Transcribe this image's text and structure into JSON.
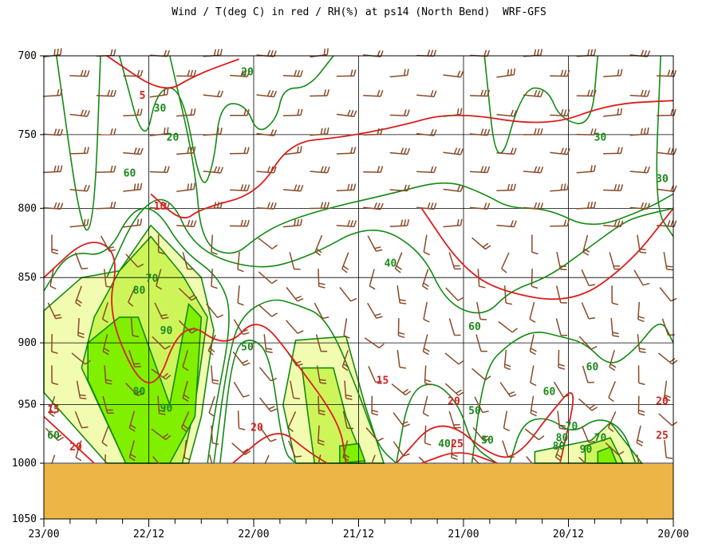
{
  "chart_data": {
    "type": "heatmap",
    "title": "Wind / T(deg C) in red / RH(%) at ps14 (North Bend)  WRF-GFS",
    "xlabel": "",
    "ylabel": "",
    "x_ticks": [
      "23/00",
      "22/12",
      "22/00",
      "21/12",
      "21/00",
      "20/12",
      "20/00"
    ],
    "y_ticks": [
      700,
      750,
      800,
      850,
      900,
      950,
      1000,
      1050
    ],
    "ylim": [
      700,
      1050
    ],
    "y_scale": "log-pressure",
    "grid": true,
    "colors": {
      "temperature": "#dd1c1c",
      "rh_contour": "#128a12",
      "wind_barb": "#8a4a28",
      "ground": "#ecb545",
      "rh_70": "#f2fcb0",
      "rh_80": "#cdf55a",
      "rh_90": "#80f000"
    },
    "rh_contour_labels": [
      {
        "label": "20",
        "x": "22/00",
        "p": 712
      },
      {
        "label": "30",
        "x": "22/12",
        "p": 735
      },
      {
        "label": "20",
        "x": "22/12",
        "p": 754
      },
      {
        "label": "60",
        "x": "22/12",
        "p": 778
      },
      {
        "label": "40",
        "x": "21/12",
        "p": 842
      },
      {
        "label": "70",
        "x": "22/12",
        "p": 853
      },
      {
        "label": "80",
        "x": "22/12",
        "p": 862
      },
      {
        "label": "90",
        "x": "22/12",
        "p": 893
      },
      {
        "label": "50",
        "x": "22/00",
        "p": 906
      },
      {
        "label": "60",
        "x": "21/00",
        "p": 890
      },
      {
        "label": "60",
        "x": "20/12",
        "p": 922
      },
      {
        "label": "60",
        "x": "20/12",
        "p": 942
      },
      {
        "label": "30",
        "x": "20/12",
        "p": 754
      },
      {
        "label": "30",
        "x": "20/00",
        "p": 782
      },
      {
        "label": "80",
        "x": "22/12",
        "p": 942
      },
      {
        "label": "90",
        "x": "22/12",
        "p": 956
      },
      {
        "label": "60",
        "x": "23/00",
        "p": 979
      },
      {
        "label": "50",
        "x": "21/00",
        "p": 958
      },
      {
        "label": "50",
        "x": "21/00",
        "p": 983
      },
      {
        "label": "40",
        "x": "21/00",
        "p": 986
      },
      {
        "label": "70",
        "x": "20/12",
        "p": 981
      },
      {
        "label": "70",
        "x": "20/12",
        "p": 971
      },
      {
        "label": "80",
        "x": "20/12",
        "p": 988
      },
      {
        "label": "90",
        "x": "20/12",
        "p": 991
      },
      {
        "label": "80",
        "x": "20/12",
        "p": 981
      }
    ],
    "temperature_contour_labels": [
      {
        "label": "5",
        "x": "22/12",
        "p": 727
      },
      {
        "label": "10",
        "x": "22/12",
        "p": 801
      },
      {
        "label": "15",
        "x": "21/12",
        "p": 933
      },
      {
        "label": "15",
        "x": "23/00",
        "p": 957
      },
      {
        "label": "20",
        "x": "23/00",
        "p": 989
      },
      {
        "label": "20",
        "x": "22/00",
        "p": 972
      },
      {
        "label": "20",
        "x": "21/00",
        "p": 950
      },
      {
        "label": "20",
        "x": "20/00",
        "p": 950
      },
      {
        "label": "25",
        "x": "21/00",
        "p": 986
      },
      {
        "label": "25",
        "x": "20/00",
        "p": 979
      }
    ],
    "temperature_lines": [
      {
        "level": 5,
        "points": [
          [
            0.1,
            700
          ],
          [
            0.19,
            724
          ],
          [
            0.24,
            712
          ],
          [
            0.31,
            702
          ]
        ]
      },
      {
        "level": 10,
        "points": [
          [
            0.17,
            790
          ],
          [
            0.22,
            810
          ],
          [
            0.25,
            800
          ],
          [
            0.34,
            790
          ],
          [
            0.39,
            755
          ],
          [
            0.47,
            752
          ],
          [
            0.56,
            745
          ],
          [
            0.65,
            735
          ],
          [
            0.8,
            745
          ],
          [
            0.9,
            730
          ],
          [
            1.0,
            728
          ]
        ]
      },
      {
        "level": 15,
        "points": [
          [
            0.0,
            850
          ],
          [
            0.07,
            820
          ],
          [
            0.12,
            832
          ],
          [
            0.1,
            880
          ],
          [
            0.17,
            950
          ],
          [
            0.22,
            880
          ],
          [
            0.29,
            905
          ],
          [
            0.34,
            878
          ],
          [
            0.4,
            915
          ],
          [
            0.47,
            965
          ],
          [
            0.48,
            1000
          ]
        ]
      },
      {
        "level": 20,
        "points": [
          [
            0.0,
            960
          ],
          [
            0.08,
            1000
          ]
        ]
      },
      {
        "level": 20,
        "points": [
          [
            0.3,
            1000
          ],
          [
            0.37,
            968
          ],
          [
            0.42,
            990
          ],
          [
            0.45,
            1000
          ]
        ]
      },
      {
        "level": 20,
        "points": [
          [
            0.56,
            1000
          ],
          [
            0.63,
            958
          ],
          [
            0.72,
            998
          ],
          [
            0.76,
            990
          ],
          [
            0.8,
            960
          ],
          [
            0.85,
            930
          ],
          [
            0.82,
            1000
          ]
        ]
      },
      {
        "level": 25,
        "points": [
          [
            0.6,
            1000
          ],
          [
            0.66,
            988
          ],
          [
            0.72,
            1000
          ]
        ]
      },
      {
        "level": 10,
        "points": [
          [
            0.6,
            800
          ],
          [
            0.66,
            840
          ],
          [
            0.72,
            860
          ],
          [
            0.84,
            870
          ],
          [
            0.93,
            840
          ],
          [
            1.0,
            800
          ]
        ]
      }
    ],
    "moist_regions": [
      {
        "rh": 70,
        "points": [
          [
            0.0,
            875
          ],
          [
            0.06,
            850
          ],
          [
            0.12,
            845
          ],
          [
            0.17,
            812
          ],
          [
            0.25,
            850
          ],
          [
            0.27,
            890
          ],
          [
            0.25,
            960
          ],
          [
            0.23,
            1000
          ],
          [
            0.1,
            1000
          ],
          [
            0.0,
            940
          ]
        ]
      },
      {
        "rh": 80,
        "points": [
          [
            0.08,
            880
          ],
          [
            0.12,
            845
          ],
          [
            0.17,
            820
          ],
          [
            0.22,
            848
          ],
          [
            0.26,
            880
          ],
          [
            0.24,
            950
          ],
          [
            0.22,
            1000
          ],
          [
            0.13,
            1000
          ],
          [
            0.06,
            920
          ]
        ]
      },
      {
        "rh": 90,
        "points": [
          [
            0.07,
            900
          ],
          [
            0.12,
            880
          ],
          [
            0.15,
            880
          ],
          [
            0.2,
            950
          ],
          [
            0.23,
            870
          ],
          [
            0.25,
            880
          ],
          [
            0.24,
            960
          ],
          [
            0.2,
            1000
          ],
          [
            0.13,
            1000
          ],
          [
            0.07,
            930
          ]
        ]
      },
      {
        "rh": 70,
        "points": [
          [
            0.4,
            898
          ],
          [
            0.48,
            895
          ],
          [
            0.51,
            950
          ],
          [
            0.54,
            1000
          ],
          [
            0.4,
            1000
          ],
          [
            0.38,
            950
          ]
        ]
      },
      {
        "rh": 80,
        "points": [
          [
            0.41,
            920
          ],
          [
            0.46,
            920
          ],
          [
            0.48,
            960
          ],
          [
            0.51,
            1000
          ],
          [
            0.43,
            1000
          ],
          [
            0.42,
            960
          ]
        ]
      },
      {
        "rh": 90,
        "points": [
          [
            0.47,
            985
          ],
          [
            0.5,
            983
          ],
          [
            0.51,
            998
          ],
          [
            0.47,
            1000
          ]
        ]
      },
      {
        "rh": 70,
        "points": [
          [
            0.78,
            990
          ],
          [
            0.87,
            980
          ],
          [
            0.9,
            965
          ],
          [
            0.95,
            1000
          ],
          [
            0.78,
            1000
          ]
        ]
      },
      {
        "rh": 80,
        "points": [
          [
            0.86,
            985
          ],
          [
            0.9,
            978
          ],
          [
            0.92,
            1000
          ],
          [
            0.86,
            1000
          ]
        ]
      },
      {
        "rh": 90,
        "points": [
          [
            0.88,
            990
          ],
          [
            0.9,
            986
          ],
          [
            0.91,
            1000
          ],
          [
            0.88,
            1000
          ]
        ]
      }
    ],
    "rh_lines": [
      {
        "level": 20,
        "points": [
          [
            0.02,
            700
          ],
          [
            0.06,
            820
          ],
          [
            0.08,
            810
          ],
          [
            0.09,
            700
          ]
        ]
      },
      {
        "level": 20,
        "points": [
          [
            0.12,
            700
          ],
          [
            0.16,
            760
          ],
          [
            0.18,
            720
          ],
          [
            0.22,
            720
          ],
          [
            0.25,
            790
          ],
          [
            0.27,
            770
          ],
          [
            0.28,
            730
          ],
          [
            0.32,
            730
          ],
          [
            0.34,
            750
          ],
          [
            0.37,
            740
          ],
          [
            0.38,
            720
          ],
          [
            0.42,
            720
          ],
          [
            0.46,
            700
          ]
        ]
      },
      {
        "level": 30,
        "points": [
          [
            0.2,
            700
          ],
          [
            0.24,
            770
          ],
          [
            0.25,
            825
          ],
          [
            0.3,
            835
          ],
          [
            0.34,
            820
          ],
          [
            0.38,
            810
          ],
          [
            0.45,
            800
          ],
          [
            0.55,
            790
          ],
          [
            0.64,
            780
          ],
          [
            0.7,
            790
          ],
          [
            0.74,
            800
          ],
          [
            0.8,
            800
          ],
          [
            0.87,
            815
          ],
          [
            0.96,
            800
          ],
          [
            1.0,
            790
          ]
        ]
      },
      {
        "level": 30,
        "points": [
          [
            0.7,
            700
          ],
          [
            0.72,
            780
          ],
          [
            0.76,
            720
          ],
          [
            0.8,
            720
          ],
          [
            0.82,
            740
          ],
          [
            0.87,
            745
          ],
          [
            0.88,
            700
          ]
        ]
      },
      {
        "level": 30,
        "points": [
          [
            0.98,
            700
          ],
          [
            0.97,
            800
          ],
          [
            1.0,
            820
          ]
        ]
      },
      {
        "level": 40,
        "points": [
          [
            0.1,
            850
          ],
          [
            0.15,
            800
          ],
          [
            0.2,
            790
          ],
          [
            0.24,
            830
          ],
          [
            0.34,
            845
          ],
          [
            0.42,
            835
          ],
          [
            0.52,
            810
          ],
          [
            0.6,
            830
          ],
          [
            0.64,
            870
          ],
          [
            0.7,
            880
          ],
          [
            0.74,
            860
          ],
          [
            0.8,
            850
          ],
          [
            0.86,
            830
          ],
          [
            0.92,
            810
          ],
          [
            0.95,
            805
          ],
          [
            1.0,
            800
          ]
        ]
      },
      {
        "level": 50,
        "points": [
          [
            0.28,
            1000
          ],
          [
            0.3,
            905
          ],
          [
            0.33,
            895
          ],
          [
            0.36,
            910
          ],
          [
            0.38,
            990
          ],
          [
            0.4,
            1000
          ]
        ]
      },
      {
        "level": 50,
        "points": [
          [
            0.56,
            1000
          ],
          [
            0.58,
            940
          ],
          [
            0.62,
            930
          ],
          [
            0.66,
            950
          ],
          [
            0.68,
            985
          ],
          [
            0.72,
            1000
          ]
        ]
      },
      {
        "level": 60,
        "points": [
          [
            0.27,
            1000
          ],
          [
            0.29,
            920
          ],
          [
            0.31,
            880
          ],
          [
            0.36,
            865
          ],
          [
            0.4,
            870
          ],
          [
            0.45,
            880
          ],
          [
            0.5,
            940
          ],
          [
            0.53,
            985
          ],
          [
            0.56,
            1000
          ]
        ]
      },
      {
        "level": 60,
        "points": [
          [
            0.68,
            1000
          ],
          [
            0.7,
            920
          ],
          [
            0.74,
            900
          ],
          [
            0.78,
            890
          ],
          [
            0.82,
            895
          ],
          [
            0.86,
            900
          ],
          [
            0.9,
            920
          ],
          [
            0.94,
            905
          ],
          [
            0.98,
            880
          ],
          [
            1.0,
            900
          ]
        ]
      },
      {
        "level": 70,
        "points": [
          [
            0.0,
            860
          ],
          [
            0.04,
            830
          ],
          [
            0.1,
            835
          ],
          [
            0.14,
            800
          ],
          [
            0.18,
            800
          ],
          [
            0.22,
            830
          ],
          [
            0.28,
            850
          ],
          [
            0.3,
            880
          ],
          [
            0.27,
            960
          ],
          [
            0.26,
            1000
          ]
        ]
      },
      {
        "level": 70,
        "points": [
          [
            0.74,
            1000
          ],
          [
            0.76,
            965
          ],
          [
            0.8,
            960
          ],
          [
            0.84,
            975
          ],
          [
            0.88,
            960
          ],
          [
            0.92,
            970
          ],
          [
            0.94,
            1000
          ]
        ]
      }
    ]
  },
  "wind_barbs": {
    "note": "drawn procedurally"
  }
}
